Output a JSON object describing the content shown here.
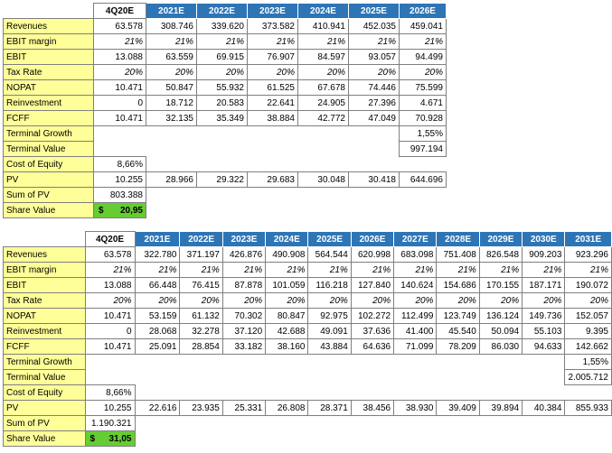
{
  "table1": {
    "headers": [
      "4Q20E",
      "2021E",
      "2022E",
      "2023E",
      "2024E",
      "2025E",
      "2026E"
    ],
    "rows": [
      {
        "label": "Revenues",
        "values": [
          "63.578",
          "308.746",
          "339.620",
          "373.582",
          "410.941",
          "452.035",
          "459.041"
        ],
        "italic": false
      },
      {
        "label": "EBIT margin",
        "values": [
          "21%",
          "21%",
          "21%",
          "21%",
          "21%",
          "21%",
          "21%"
        ],
        "italic": true
      },
      {
        "label": "EBIT",
        "values": [
          "13.088",
          "63.559",
          "69.915",
          "76.907",
          "84.597",
          "93.057",
          "94.499"
        ],
        "italic": false
      },
      {
        "label": "Tax Rate",
        "values": [
          "20%",
          "20%",
          "20%",
          "20%",
          "20%",
          "20%",
          "20%"
        ],
        "italic": true
      },
      {
        "label": "NOPAT",
        "values": [
          "10.471",
          "50.847",
          "55.932",
          "61.525",
          "67.678",
          "74.446",
          "75.599"
        ],
        "italic": false
      },
      {
        "label": "Reinvestment",
        "values": [
          "0",
          "18.712",
          "20.583",
          "22.641",
          "24.905",
          "27.396",
          "4.671"
        ],
        "italic": false
      },
      {
        "label": "FCFF",
        "values": [
          "10.471",
          "32.135",
          "35.349",
          "38.884",
          "42.772",
          "47.049",
          "70.928"
        ],
        "italic": false
      },
      {
        "label": "Terminal Growth",
        "values": [
          "",
          "",
          "",
          "",
          "",
          "",
          "1,55%"
        ],
        "italic": false
      },
      {
        "label": "Terminal Value",
        "values": [
          "",
          "",
          "",
          "",
          "",
          "",
          "997.194"
        ],
        "italic": false
      },
      {
        "label": "Cost of Equity",
        "values": [
          "8,66%",
          "",
          "",
          "",
          "",
          "",
          ""
        ],
        "italic": false
      },
      {
        "label": "PV",
        "values": [
          "10.255",
          "28.966",
          "29.322",
          "29.683",
          "30.048",
          "30.418",
          "644.696"
        ],
        "italic": false
      },
      {
        "label": "Sum of PV",
        "values": [
          "803.388",
          "",
          "",
          "",
          "",
          "",
          ""
        ],
        "italic": false
      }
    ],
    "share_label": "Share Value",
    "share_currency": "$",
    "share_value": "20,95"
  },
  "table2": {
    "headers": [
      "4Q20E",
      "2021E",
      "2022E",
      "2023E",
      "2024E",
      "2025E",
      "2026E",
      "2027E",
      "2028E",
      "2029E",
      "2030E",
      "2031E"
    ],
    "rows": [
      {
        "label": "Revenues",
        "values": [
          "63.578",
          "322.780",
          "371.197",
          "426.876",
          "490.908",
          "564.544",
          "620.998",
          "683.098",
          "751.408",
          "826.548",
          "909.203",
          "923.296"
        ],
        "italic": false
      },
      {
        "label": "EBIT margin",
        "values": [
          "21%",
          "21%",
          "21%",
          "21%",
          "21%",
          "21%",
          "21%",
          "21%",
          "21%",
          "21%",
          "21%",
          "21%"
        ],
        "italic": true
      },
      {
        "label": "EBIT",
        "values": [
          "13.088",
          "66.448",
          "76.415",
          "87.878",
          "101.059",
          "116.218",
          "127.840",
          "140.624",
          "154.686",
          "170.155",
          "187.171",
          "190.072"
        ],
        "italic": false
      },
      {
        "label": "Tax Rate",
        "values": [
          "20%",
          "20%",
          "20%",
          "20%",
          "20%",
          "20%",
          "20%",
          "20%",
          "20%",
          "20%",
          "20%",
          "20%"
        ],
        "italic": true
      },
      {
        "label": "NOPAT",
        "values": [
          "10.471",
          "53.159",
          "61.132",
          "70.302",
          "80.847",
          "92.975",
          "102.272",
          "112.499",
          "123.749",
          "136.124",
          "149.736",
          "152.057"
        ],
        "italic": false
      },
      {
        "label": "Reinvestment",
        "values": [
          "0",
          "28.068",
          "32.278",
          "37.120",
          "42.688",
          "49.091",
          "37.636",
          "41.400",
          "45.540",
          "50.094",
          "55.103",
          "9.395"
        ],
        "italic": false
      },
      {
        "label": "FCFF",
        "values": [
          "10.471",
          "25.091",
          "28.854",
          "33.182",
          "38.160",
          "43.884",
          "64.636",
          "71.099",
          "78.209",
          "86.030",
          "94.633",
          "142.662"
        ],
        "italic": false
      },
      {
        "label": "Terminal Growth",
        "values": [
          "",
          "",
          "",
          "",
          "",
          "",
          "",
          "",
          "",
          "",
          "",
          "1,55%"
        ],
        "italic": false
      },
      {
        "label": "Terminal Value",
        "values": [
          "",
          "",
          "",
          "",
          "",
          "",
          "",
          "",
          "",
          "",
          "",
          "2.005.712"
        ],
        "italic": false
      },
      {
        "label": "Cost of Equity",
        "values": [
          "8,66%",
          "",
          "",
          "",
          "",
          "",
          "",
          "",
          "",
          "",
          "",
          ""
        ],
        "italic": false
      },
      {
        "label": "PV",
        "values": [
          "10.255",
          "22.616",
          "23.935",
          "25.331",
          "26.808",
          "28.371",
          "38.456",
          "38.930",
          "39.409",
          "39.894",
          "40.384",
          "855.933"
        ],
        "italic": false
      },
      {
        "label": "Sum of PV",
        "values": [
          "1.190.321",
          "",
          "",
          "",
          "",
          "",
          "",
          "",
          "",
          "",
          "",
          ""
        ],
        "italic": false
      }
    ],
    "share_label": "Share Value",
    "share_currency": "$",
    "share_value": "31,05"
  },
  "colors": {
    "label_fill": "#ffff99",
    "header_fill": "#2e75b6",
    "share_fill": "#66cc33"
  }
}
